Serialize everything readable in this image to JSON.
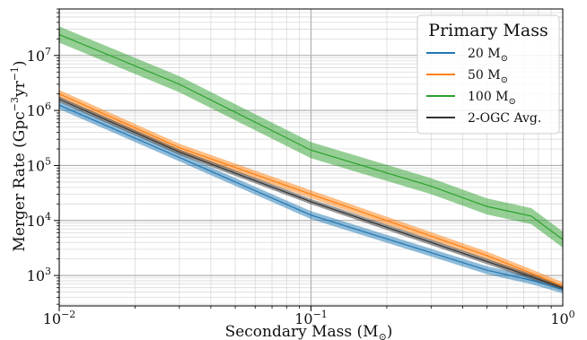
{
  "chart_data": {
    "type": "line",
    "xscale": "log",
    "yscale": "log",
    "xlim": [
      0.01,
      1
    ],
    "ylim": [
      280,
      70000000
    ],
    "x_ticks": [
      {
        "value": 0.01,
        "base": "10",
        "exp": "−2"
      },
      {
        "value": 0.1,
        "base": "10",
        "exp": "−1"
      },
      {
        "value": 1,
        "base": "10",
        "exp": "0"
      }
    ],
    "y_ticks": [
      {
        "value": 1000,
        "base": "10",
        "exp": "3"
      },
      {
        "value": 10000,
        "base": "10",
        "exp": "4"
      },
      {
        "value": 100000,
        "base": "10",
        "exp": "5"
      },
      {
        "value": 1000000,
        "base": "10",
        "exp": "6"
      },
      {
        "value": 10000000,
        "base": "10",
        "exp": "7"
      }
    ],
    "xlabel": "Secondary Mass (M",
    "xlabel_sub": "⊙",
    "xlabel_end": ")",
    "ylabel": "Merger Rate (Gpc",
    "ylabel_sup1": "−3",
    "ylabel_mid": "yr",
    "ylabel_sup2": "−1",
    "ylabel_end": ")",
    "grid": true,
    "legend": {
      "title": "Primary Mass",
      "placement": "top-right"
    },
    "x": [
      0.01,
      0.03,
      0.1,
      0.3,
      0.5,
      0.75,
      1.0
    ],
    "series": [
      {
        "name": "20 M",
        "name_sub": "⊙",
        "color": "#1f77b4",
        "values": [
          1250000,
          140000,
          12500,
          2600,
          1250,
          820,
          560
        ],
        "band": [
          1.18,
          1.18
        ]
      },
      {
        "name": "50 M",
        "name_sub": "⊙",
        "color": "#ff7f0e",
        "values": [
          2000000,
          210000,
          30000,
          5200,
          2300,
          1100,
          640
        ],
        "band": [
          1.18,
          1.18
        ]
      },
      {
        "name": "100 M",
        "name_sub": "⊙",
        "color": "#2ca02c",
        "values": [
          24000000,
          3000000,
          190000,
          42000,
          18000,
          12000,
          4500
        ],
        "band": [
          1.4,
          1.4
        ]
      },
      {
        "name": "2-OGC Avg.",
        "name_sub": "",
        "color": "#333333",
        "values": [
          1600000,
          175000,
          22000,
          4000,
          1800,
          950,
          590
        ],
        "band": [
          1.12,
          1.12
        ]
      }
    ]
  }
}
